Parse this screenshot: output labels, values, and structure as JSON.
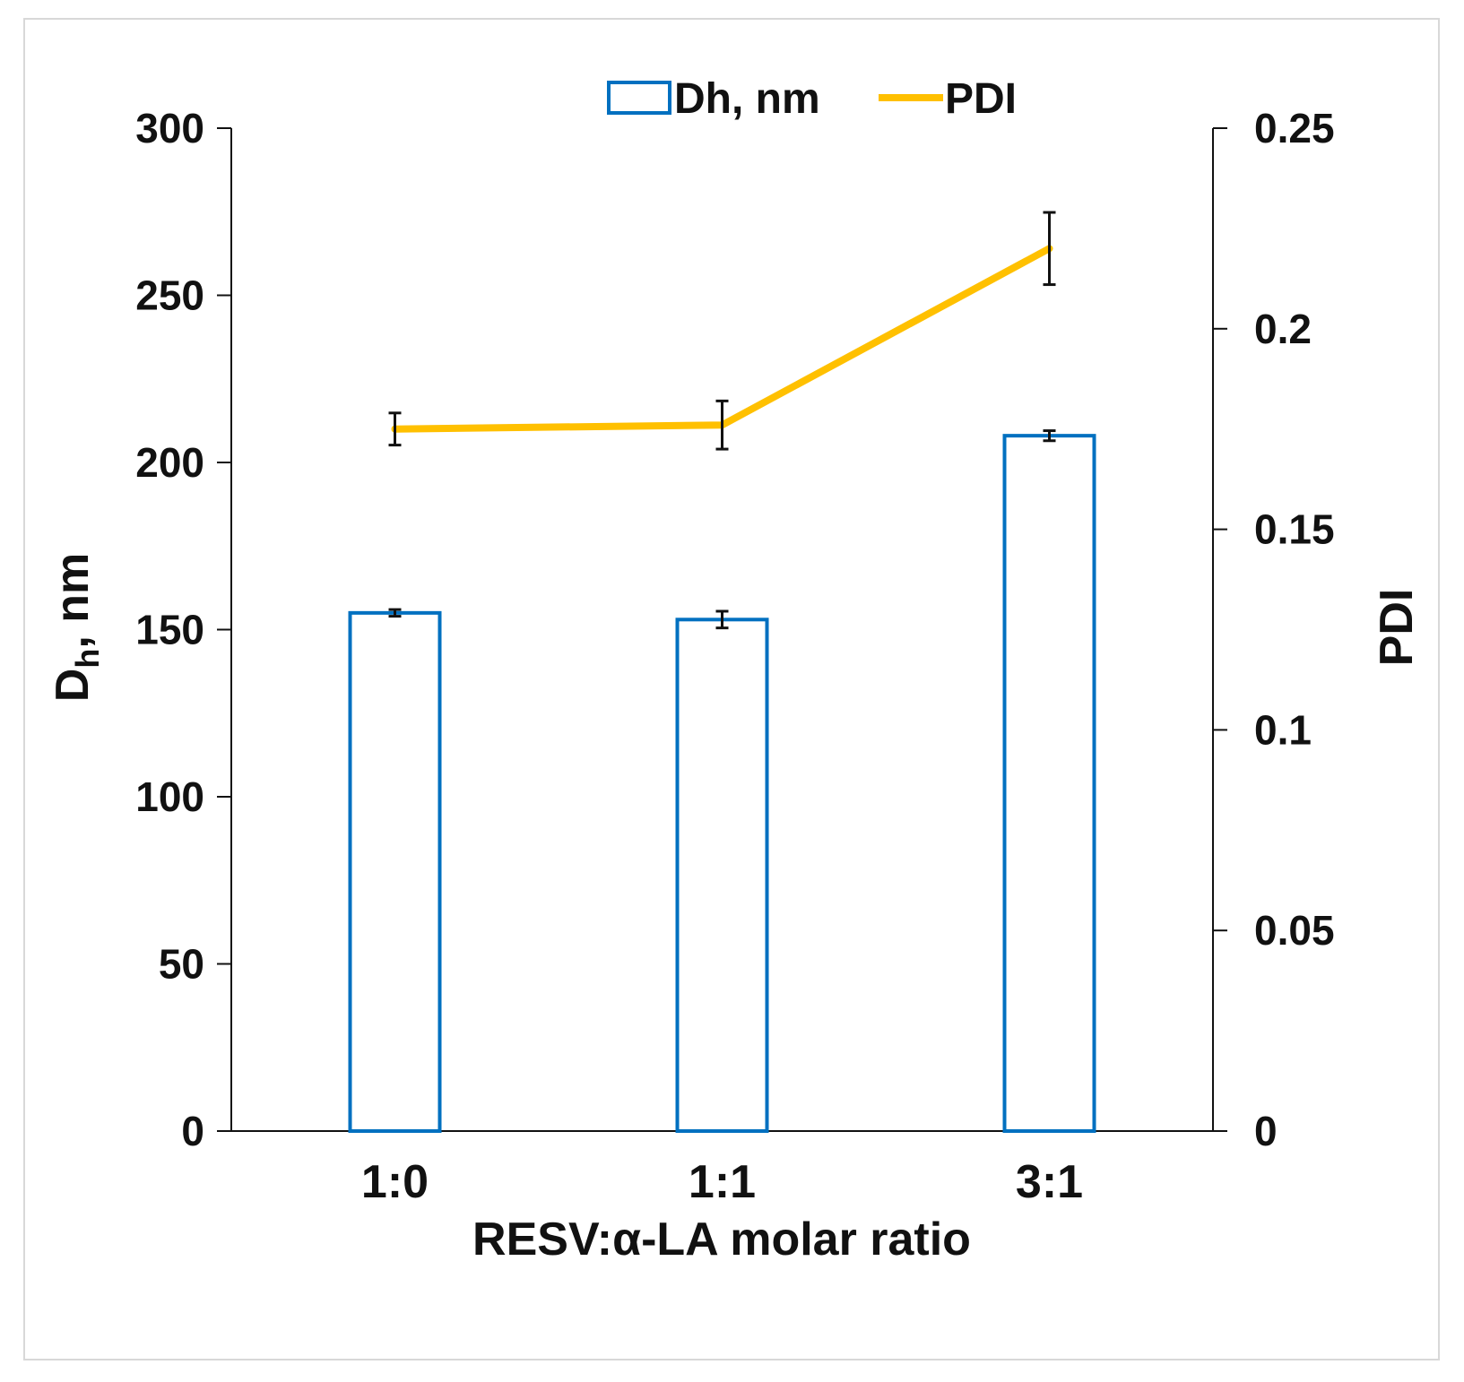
{
  "chart_data": {
    "type": "bar",
    "title": "",
    "categories": [
      "1:0",
      "1:1",
      "3:1"
    ],
    "xlabel": "RESV:α-LA molar ratio",
    "ylabel_main": "D",
    "ylabel_sub": "h",
    "ylabel_rest": ", nm",
    "y2label": "PDI",
    "ylim": [
      0,
      300
    ],
    "y2lim": [
      0,
      0.25
    ],
    "yticks": [
      "0",
      "50",
      "100",
      "150",
      "200",
      "250",
      "300"
    ],
    "y2ticks": [
      "0",
      "0.05",
      "0.1",
      "0.15",
      "0.2",
      "0.25"
    ],
    "series": [
      {
        "name": "Dh, nm",
        "kind": "bar",
        "axis": "left",
        "values": [
          155,
          153,
          208
        ],
        "errors": [
          1,
          2.5,
          1.5
        ]
      },
      {
        "name": "PDI",
        "kind": "line",
        "axis": "right",
        "values": [
          0.175,
          0.176,
          0.22
        ],
        "errors": [
          0.004,
          0.006,
          0.009
        ]
      }
    ],
    "colors": {
      "bar_outline": "#0070c0",
      "line": "#ffc000",
      "axis": "#111111",
      "error": "#111111"
    },
    "legend_position": "top"
  }
}
